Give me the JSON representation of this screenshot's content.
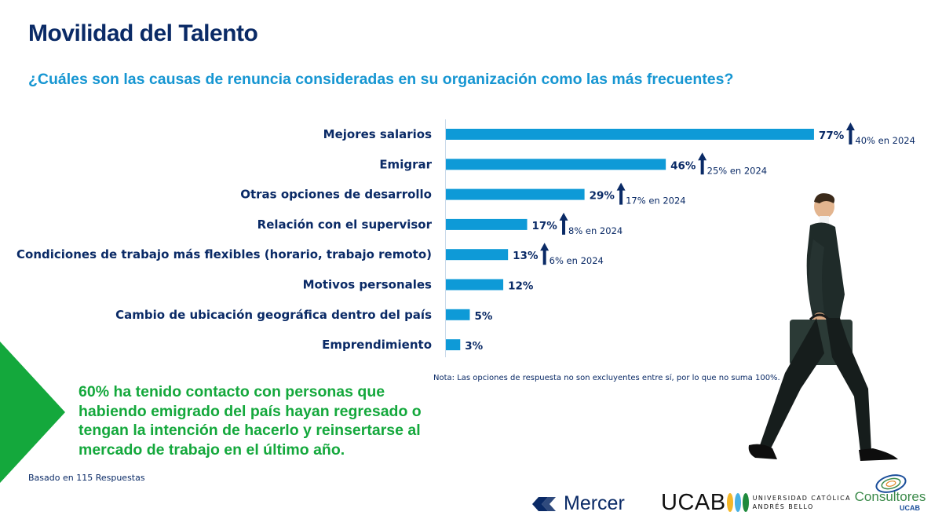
{
  "header": {
    "title": "Movilidad del Talento",
    "subtitle": "¿Cuáles son las causas de renuncia consideradas en su organización como las más frecuentes?"
  },
  "chart_data": {
    "type": "bar",
    "orientation": "horizontal",
    "title": "¿Cuáles son las causas de renuncia consideradas en su organización como las más frecuentes?",
    "xlabel": "",
    "ylabel": "",
    "xlim": [
      0,
      100
    ],
    "grid": false,
    "categories": [
      "Mejores salarios",
      "Emigrar",
      "Otras opciones de desarrollo",
      "Relación con el supervisor",
      "Condiciones de trabajo más flexibles (horario, trabajo remoto)",
      "Motivos personales",
      "Cambio de ubicación geográfica dentro del país",
      "Emprendimiento"
    ],
    "values": [
      77,
      46,
      29,
      17,
      13,
      12,
      5,
      3
    ],
    "value_labels": [
      "77%",
      "46%",
      "29%",
      "17%",
      "13%",
      "12%",
      "5%",
      "3%"
    ],
    "comparison_2024": [
      {
        "category": "Mejores salarios",
        "value": 40,
        "label": "40% en 2024",
        "trend": "up"
      },
      {
        "category": "Emigrar",
        "value": 25,
        "label": "25% en 2024",
        "trend": "up"
      },
      {
        "category": "Otras opciones de desarrollo",
        "value": 17,
        "label": "17% en 2024",
        "trend": "up"
      },
      {
        "category": "Relación con el supervisor",
        "value": 8,
        "label": "8% en 2024",
        "trend": "up"
      },
      {
        "category": "Condiciones de trabajo más flexibles (horario, trabajo remoto)",
        "value": 6,
        "label": "6% en 2024",
        "trend": "up"
      }
    ],
    "bar_color": "#0e9ad7",
    "label_color": "#0a2a66",
    "arrow_color": "#0a2a66"
  },
  "note": "Nota: Las opciones de respuesta no son excluyentes entre sí, por lo que no suma 100%.",
  "highlight": {
    "text": "60% ha tenido contacto con personas que habiendo emigrado del país hayan regresado o tengan la intención de hacerlo y reinsertarse al mercado de trabajo en el último año.",
    "color": "#14a83c"
  },
  "base_note": "Basado en 115 Respuestas",
  "logos": {
    "mercer": "Mercer",
    "ucab": "UCAB",
    "ucab_line1": "UNIVERSIDAD CATÓLICA",
    "ucab_line2": "ANDRÉS BELLO",
    "consultores": "Consultores",
    "consultores_sub": "UCAB"
  },
  "illustration": "businessman-walking-icon"
}
